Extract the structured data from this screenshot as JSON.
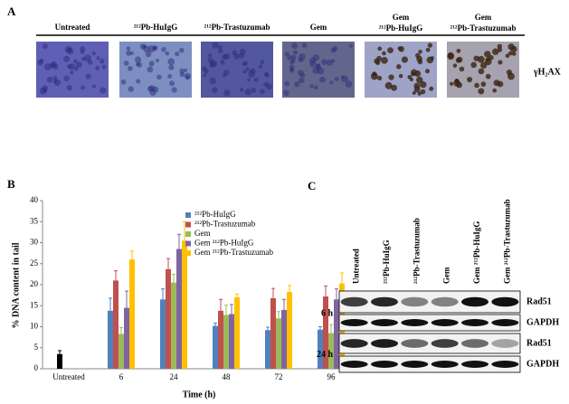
{
  "panel_a": {
    "label": "A",
    "columns": [
      "Untreated",
      "²¹²Pb-HuIgG",
      "²¹²Pb-Trastuzumab",
      "Gem",
      [
        "Gem",
        "²¹²Pb-HuIgG"
      ],
      [
        "Gem",
        "²¹²Pb-Trastuzumab"
      ]
    ],
    "row_label": "γH₂AX"
  },
  "chart_data": {
    "type": "bar",
    "label": "B",
    "ylabel": "% DNA content in tail",
    "xlabel": "Time (h)",
    "categories": [
      "Untreated",
      "6",
      "24",
      "48",
      "72",
      "96"
    ],
    "ylim": [
      0,
      40
    ],
    "yticks": [
      0,
      5,
      10,
      15,
      20,
      25,
      30,
      35,
      40
    ],
    "control": {
      "color": "#000000",
      "values": [
        3.5,
        null,
        null,
        null,
        null,
        null
      ],
      "errors": [
        0.8,
        null,
        null,
        null,
        null,
        null
      ]
    },
    "series": [
      {
        "name": "²¹²Pb-HuIgG",
        "color": "#4f81bd",
        "values": [
          null,
          13.8,
          16.5,
          10.2,
          9.2,
          9.3
        ],
        "errors": [
          null,
          3,
          2.5,
          0.7,
          0.7,
          0.7
        ]
      },
      {
        "name": "²¹²Pb-Trastuzumab",
        "color": "#c0504d",
        "values": [
          null,
          21,
          23.7,
          13.8,
          16.8,
          17.2
        ],
        "errors": [
          null,
          2.3,
          2.5,
          2.7,
          2.3,
          2.5
        ]
      },
      {
        "name": "Gem",
        "color": "#9bbb59",
        "values": [
          null,
          8.3,
          20.5,
          12.8,
          12,
          8.5
        ],
        "errors": [
          null,
          1.5,
          2,
          2.3,
          1.6,
          2
        ]
      },
      {
        "name": "Gem ²¹²Pb-HuIgG",
        "color": "#8064a2",
        "values": [
          null,
          14.5,
          28.5,
          13,
          14,
          16.5
        ],
        "errors": [
          null,
          4,
          3.5,
          2.3,
          2.5,
          2.5
        ]
      },
      {
        "name": "Gem ²¹²Pb-Trastuzumab",
        "color": "#ffc000",
        "values": [
          null,
          26,
          30.5,
          17,
          18.3,
          20.3
        ],
        "errors": [
          null,
          2,
          4.5,
          0.8,
          1.5,
          2.5
        ]
      }
    ]
  },
  "panel_c": {
    "label": "C",
    "columns": [
      "Untreated",
      "²¹²Pb-HuIgG",
      "²¹²Pb-Trastuzumab",
      "Gem",
      "Gem ²¹²Pb-HuIgG",
      "Gem ²¹²Pb-Trastuzumab"
    ],
    "groups": [
      {
        "time": "6 h",
        "blots": [
          "Rad51",
          "GAPDH"
        ]
      },
      {
        "time": "24 h",
        "blots": [
          "Rad51",
          "GAPDH"
        ]
      }
    ]
  }
}
